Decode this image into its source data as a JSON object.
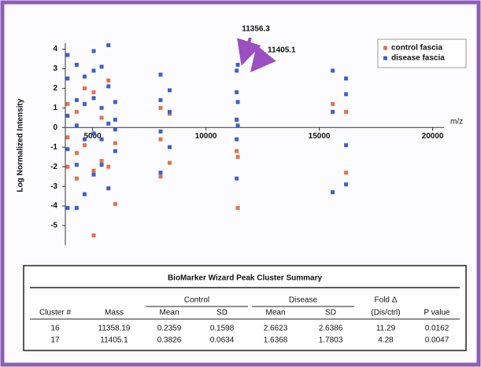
{
  "chart_data": {
    "type": "scatter",
    "y_label": "Log Normalized Intensity",
    "x_label": "m/z",
    "annotations": [
      "11356.3",
      "11405.1"
    ],
    "xlim": [
      3800,
      20500
    ],
    "xticks": [
      5000,
      10000,
      15000,
      20000
    ],
    "ylim": [
      -6,
      4.3
    ],
    "yticks": [
      4,
      3,
      2,
      1,
      0,
      -1,
      -2,
      -3,
      -4,
      -5
    ],
    "legend": "top-right",
    "series": [
      {
        "name": "control fascia",
        "color": "#e8704a",
        "x": [
          3900,
          3900,
          3900,
          4300,
          4300,
          4300,
          4650,
          4650,
          5050,
          5050,
          5050,
          5400,
          5400,
          5700,
          5700,
          6000,
          6000,
          8000,
          8000,
          8000,
          8400,
          8400,
          11356,
          11356,
          11405,
          11405,
          15590,
          15590,
          16180,
          16180
        ],
        "values": [
          1.2,
          -0.5,
          -2.0,
          0.8,
          -1.3,
          -2.6,
          2.0,
          -0.9,
          1.8,
          -2.2,
          -5.5,
          0.5,
          -1.7,
          2.4,
          -2.0,
          -0.8,
          -3.9,
          1.0,
          -0.6,
          -2.5,
          0.7,
          -1.8,
          0.4,
          -1.2,
          -1.5,
          -4.1,
          1.2,
          -3.3,
          0.8,
          -2.3
        ]
      },
      {
        "name": "disease fascia",
        "color": "#3f5fd0",
        "x": [
          3900,
          3900,
          3900,
          3900,
          3900,
          4300,
          4300,
          4300,
          4300,
          4300,
          4650,
          4650,
          4650,
          4650,
          5050,
          5050,
          5050,
          5050,
          5050,
          5400,
          5400,
          5400,
          5400,
          5700,
          5700,
          5700,
          5700,
          6000,
          6000,
          6000,
          6000,
          8000,
          8000,
          8000,
          8000,
          8400,
          8400,
          8400,
          11356,
          11356,
          11356,
          11356,
          11356,
          11405,
          11405,
          11405,
          15590,
          15590,
          15590,
          16180,
          16180,
          16180,
          16180
        ],
        "values": [
          3.7,
          2.5,
          0.6,
          -1.1,
          -4.1,
          3.2,
          1.4,
          0.1,
          -1.9,
          -4.1,
          2.6,
          1.2,
          -0.6,
          -3.4,
          3.9,
          2.9,
          1.5,
          -0.3,
          -2.4,
          3.1,
          1.0,
          -0.6,
          -1.9,
          4.2,
          2.1,
          0.2,
          -3.1,
          1.3,
          0.4,
          -0.1,
          -1.2,
          2.7,
          1.4,
          -0.2,
          -2.3,
          1.9,
          0.8,
          -1.0,
          2.9,
          1.8,
          0.4,
          -0.6,
          -2.6,
          3.2,
          1.3,
          0.1,
          2.9,
          0.8,
          -3.3,
          2.5,
          1.7,
          -0.9,
          -2.9
        ]
      }
    ]
  },
  "table": {
    "title": "BioMarker Wizard Peak Cluster Summary",
    "groups": [
      "Control",
      "Disease",
      "Fold Δ"
    ],
    "columns": [
      "Cluster #",
      "Mass",
      "Mean",
      "SD",
      "Mean",
      "SD",
      "(Dis/ctrl)",
      "P value"
    ],
    "rows": [
      [
        16,
        11358.19,
        0.2359,
        0.1598,
        2.6623,
        2.6386,
        11.29,
        0.0162
      ],
      [
        17,
        11405.1,
        0.3826,
        0.0634,
        1.6368,
        1.7803,
        4.28,
        0.0047
      ]
    ]
  }
}
